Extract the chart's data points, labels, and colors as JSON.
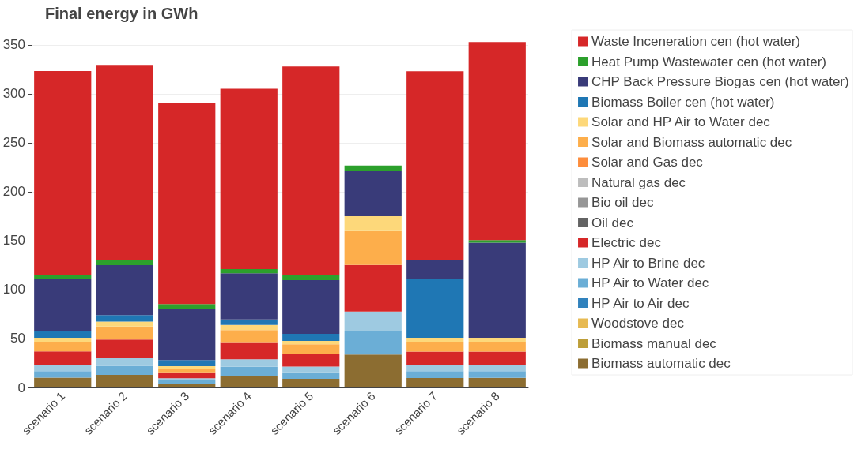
{
  "chart_data": {
    "type": "bar",
    "title": "Final energy in GWh",
    "stacked": true,
    "categories": [
      "scenario 1",
      "scenario 2",
      "scenario 3",
      "scenario 4",
      "scenario 5",
      "scenario 6",
      "scenario 7",
      "scenario 8"
    ],
    "series": [
      {
        "name": "Biomass automatic dec",
        "color": "#8c6d31",
        "values": [
          10,
          12.8,
          4,
          12,
          8.8,
          33.7,
          9.6,
          9.9
        ]
      },
      {
        "name": "Biomass manual dec",
        "color": "#bd9e39",
        "values": [
          0,
          0,
          0,
          0,
          0,
          0,
          0,
          0
        ]
      },
      {
        "name": "Woodstove dec",
        "color": "#e7ba52",
        "values": [
          0,
          0,
          0,
          0,
          0,
          0,
          0,
          0
        ]
      },
      {
        "name": "HP Air to Air dec",
        "color": "#3182bd",
        "values": [
          0,
          0,
          0,
          0,
          0,
          0,
          0,
          0
        ]
      },
      {
        "name": "HP Air to Water dec",
        "color": "#6baed6",
        "values": [
          6.8,
          9.4,
          3.2,
          9.1,
          6.7,
          23.5,
          7.2,
          6.9
        ]
      },
      {
        "name": "HP Air to Brine dec",
        "color": "#9ecae1",
        "values": [
          6,
          8,
          2.2,
          7.8,
          5.9,
          20.3,
          5.9,
          5.9
        ]
      },
      {
        "name": "Electric dec",
        "color": "#d62728",
        "values": [
          14,
          18.7,
          6.1,
          17.4,
          13.1,
          47.6,
          13.9,
          13.9
        ]
      },
      {
        "name": "Oil dec",
        "color": "#636363",
        "values": [
          0,
          0,
          0,
          0,
          0,
          0,
          0,
          0
        ]
      },
      {
        "name": "Bio oil dec",
        "color": "#969696",
        "values": [
          0,
          0,
          0,
          0,
          0,
          0,
          0,
          0
        ]
      },
      {
        "name": "Natural gas dec",
        "color": "#bdbdbd",
        "values": [
          0,
          0,
          0,
          0,
          0,
          0,
          0,
          0
        ]
      },
      {
        "name": "Solar and Gas dec",
        "color": "#fd8d3c",
        "values": [
          0,
          0,
          0,
          0,
          0,
          0,
          0,
          0
        ]
      },
      {
        "name": "Solar and Biomass automatic dec",
        "color": "#fdae4b",
        "values": [
          10,
          13.4,
          3.8,
          12.3,
          9.6,
          34.8,
          10.2,
          10.2
        ]
      },
      {
        "name": "Solar and HP Air to Water dec",
        "color": "#fdd87a",
        "values": [
          4,
          5.1,
          2.4,
          5.3,
          3.5,
          15,
          4,
          4
        ]
      },
      {
        "name": "Biomass Boiler cen (hot water)",
        "color": "#1f77b4",
        "values": [
          6.5,
          6.6,
          6.4,
          5.6,
          7.2,
          0,
          60.2,
          0
        ]
      },
      {
        "name": "CHP Back Pressure Biogas cen (hot water)",
        "color": "#393b79",
        "values": [
          53.5,
          51,
          52.6,
          47.1,
          54.8,
          46,
          19.2,
          97.1
        ]
      },
      {
        "name": "Heat Pump Wastewater cen (hot water)",
        "color": "#2ca02c",
        "values": [
          4.5,
          4.7,
          4.6,
          4.3,
          4.8,
          5.8,
          0,
          2.6
        ]
      },
      {
        "name": "Waste Inceneration cen (hot water)",
        "color": "#d62728",
        "values": [
          208,
          199.8,
          205.3,
          184.3,
          213.4,
          0,
          192.8,
          202.3
        ]
      }
    ],
    "ylim": [
      0,
      370
    ],
    "yticks": [
      0,
      50,
      100,
      150,
      200,
      250,
      300,
      350
    ],
    "grid": "y",
    "legend": "right"
  }
}
